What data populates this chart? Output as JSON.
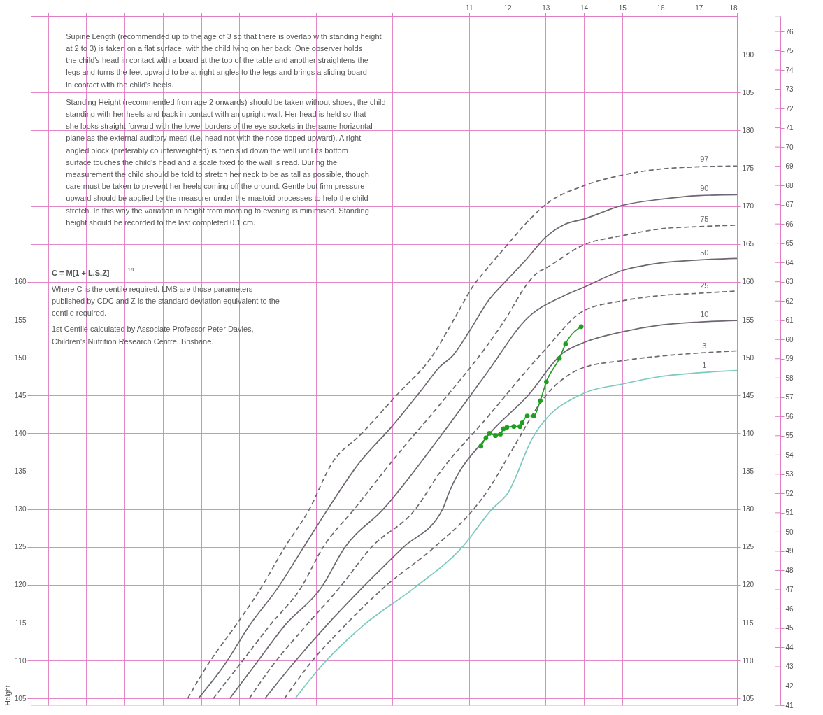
{
  "chart_data": {
    "type": "line",
    "ylabel": "Height",
    "grid": true,
    "xlim": [
      -0.45,
      18
    ],
    "xticks": [
      {
        "value": 0,
        "label": null
      },
      {
        "value": 1,
        "label": null
      },
      {
        "value": 2,
        "label": null
      },
      {
        "value": 3,
        "label": null
      },
      {
        "value": 4,
        "label": null
      },
      {
        "value": 5,
        "label": null
      },
      {
        "value": 6,
        "label": null
      },
      {
        "value": 7,
        "label": null
      },
      {
        "value": 8,
        "label": null
      },
      {
        "value": 9,
        "label": null
      },
      {
        "value": 10,
        "label": null
      },
      11,
      12,
      13,
      14,
      15,
      16,
      17,
      18
    ],
    "ylim": [
      104.1,
      195.1
    ],
    "yticks": [
      105,
      110,
      115,
      120,
      125,
      130,
      135,
      140,
      145,
      150,
      155,
      160
    ],
    "y2lim": [
      104.1,
      195.1
    ],
    "y2ticks": [
      105,
      110,
      115,
      120,
      125,
      130,
      135,
      140,
      145,
      150,
      155,
      160,
      165,
      170,
      175,
      180,
      185,
      190
    ],
    "y3lim": [
      41,
      76.8
    ],
    "y3ticks": [
      41,
      42,
      43,
      44,
      45,
      46,
      47,
      48,
      49,
      50,
      51,
      52,
      53,
      54,
      55,
      56,
      57,
      58,
      59,
      60,
      61,
      62,
      63,
      64,
      65,
      66,
      67,
      68,
      69,
      70,
      71,
      72,
      73,
      74,
      75,
      76
    ],
    "annotations": [
      "Supine Length (recommended up to the age of 3 so that there is overlap with standing height at 2 to 3) is taken on a flat surface, with the child lying on her back. One observer holds the child's head in contact with a board at the top of the table and another straightens the legs and turns the feet upward to be at right angles to the legs and brings a sliding board in contact with the child's heels.",
      "Standing Height (recommended from age 2 onwards) should be taken without shoes, the child standing with her heels and back in contact with an upright wall. Her head is held so that she looks straight forward with the lower borders of the eye sockets in the same horizontal plane as the external auditory meati (i.e. head not with the nose tipped upward). A right-angled block (preferably counterweighted) is then slid down the wall until its bottom surface touches the child's head and a scale fixed to the wall is read. During the measurement the child should be told to stretch her neck to be as tall as possible, though care must be taken to prevent her heels coming off the ground. Gentle but firm pressure upward should be applied by the measurer under the mastoid processes to help the child stretch. In this way the variation in height from morning to evening is minimised. Standing height should be recorded to the last completed 0.1 cm.",
      "C = M[1 + L.S.Z]$^{1/L}$",
      "Where C is the centile required. LMS are those parameters published by CDC and Z is the standard deviation equivalent to the centile required.",
      "1st Centile calculated by Associate Professor Peter Davies, Children's Nutrition Research Centre, Brisbane."
    ],
    "series": [
      {
        "name": "97",
        "color": "#6e6670",
        "line_style": "dashed",
        "x": [
          3.65,
          4.18,
          4.9,
          5.58,
          6.18,
          6.83,
          7.4,
          8.2,
          9.1,
          10.05,
          10.6,
          11.14,
          11.38,
          12,
          12.5,
          13,
          14,
          15,
          16,
          17,
          18
        ],
        "values": [
          105,
          109.5,
          114.6,
          119.7,
          124.9,
          130,
          135.9,
          140,
          145,
          150.3,
          155,
          159.7,
          161.2,
          164.9,
          167.8,
          170.2,
          172.7,
          174.1,
          174.9,
          175.2,
          175.3
        ]
      },
      {
        "name": "90",
        "color": "#6e6670",
        "line_style": "solid",
        "x": [
          3.93,
          4.62,
          5.26,
          6.02,
          6.67,
          7.31,
          8.1,
          9,
          9.8,
          10.22,
          10.58,
          11.01,
          11.5,
          12,
          12.5,
          13,
          13.5,
          14,
          15,
          16,
          17,
          18
        ],
        "values": [
          105,
          109.5,
          114.6,
          119.7,
          124.9,
          130,
          135.9,
          141,
          146,
          148.7,
          150.3,
          153.5,
          157.5,
          160.3,
          163,
          165.9,
          167.6,
          168.3,
          170.1,
          170.9,
          171.4,
          171.5
        ]
      },
      {
        "name": "75",
        "color": "#6e6670",
        "line_style": "dashed",
        "x": [
          4.32,
          5.01,
          5.79,
          6.62,
          7.18,
          8,
          9.1,
          10.22,
          11.5,
          11.94,
          12.5,
          12.78,
          13,
          14,
          15,
          16,
          17,
          18
        ],
        "values": [
          105,
          109.5,
          114.6,
          119.7,
          124.9,
          130,
          137,
          143.7,
          151.8,
          155,
          159.6,
          161.2,
          161.8,
          164.9,
          166.1,
          167,
          167.3,
          167.5
        ]
      },
      {
        "name": "50",
        "color": "#6e6670",
        "line_style": "solid",
        "x": [
          4.75,
          5.42,
          6.18,
          7.15,
          7.75,
          8.76,
          10.22,
          11.44,
          12.54,
          13.45,
          14,
          15,
          16,
          17,
          18
        ],
        "values": [
          105,
          109.5,
          114.6,
          119.7,
          124.9,
          130,
          139.4,
          147.8,
          155.3,
          158.1,
          159.3,
          161.5,
          162.5,
          162.9,
          163.1
        ]
      },
      {
        "name": "25",
        "color": "#6e6670",
        "line_style": "dashed",
        "x": [
          5.26,
          5.89,
          6.74,
          7.63,
          8.44,
          9.6,
          10.22,
          11.44,
          12.96,
          14,
          15,
          16,
          17,
          18
        ],
        "values": [
          105,
          109.5,
          114.6,
          119.7,
          124.9,
          130,
          134.7,
          141.9,
          150.9,
          156.2,
          157.5,
          158.2,
          158.5,
          158.8
        ]
      },
      {
        "name": "10",
        "color": "#6e6670",
        "line_style": "solid",
        "x": [
          5.67,
          6.39,
          7.27,
          8.23,
          9.27,
          10.31,
          10.47,
          11.44,
          12.54,
          13.45,
          14,
          15,
          16,
          17,
          18
        ],
        "values": [
          105,
          109.5,
          114.6,
          119.7,
          124.9,
          130,
          132.1,
          139.4,
          145,
          150.6,
          152,
          153.4,
          154.3,
          154.7,
          154.9
        ]
      },
      {
        "name": "3",
        "color": "#6e6670",
        "line_style": "dashed",
        "x": [
          6.18,
          6.83,
          7.75,
          8.79,
          10.08,
          11.12,
          11.44,
          12.17,
          12.9,
          14,
          15,
          16,
          17,
          18
        ],
        "values": [
          105,
          109.5,
          114.6,
          119.7,
          124.9,
          130,
          132.1,
          138.2,
          144.3,
          148.7,
          149.6,
          150.2,
          150.6,
          150.9
        ]
      },
      {
        "name": "1",
        "color": "#7cc9bf",
        "line_style": "solid",
        "x": [
          6.46,
          7.18,
          8.23,
          9.6,
          10.81,
          11.6,
          12.01,
          12.66,
          14,
          15,
          16,
          17,
          18
        ],
        "values": [
          105,
          109.5,
          114.6,
          119.7,
          124.9,
          130,
          132.1,
          139.4,
          145.3,
          146.5,
          147.5,
          148,
          148.3
        ]
      },
      {
        "color": "#1f9e1f",
        "line_style": "solid",
        "marker": "circle",
        "x": [
          11.31,
          11.44,
          11.53,
          11.69,
          11.82,
          11.9,
          11.99,
          12.17,
          12.33,
          12.39,
          12.52,
          12.69,
          12.86,
          13.02,
          13.36,
          13.52,
          13.93
        ],
        "values": [
          138.3,
          139.4,
          140,
          139.7,
          139.9,
          140.6,
          140.8,
          140.9,
          140.9,
          141.4,
          142.3,
          142.3,
          144.3,
          146.8,
          149.9,
          151.8,
          154.1
        ]
      }
    ]
  }
}
